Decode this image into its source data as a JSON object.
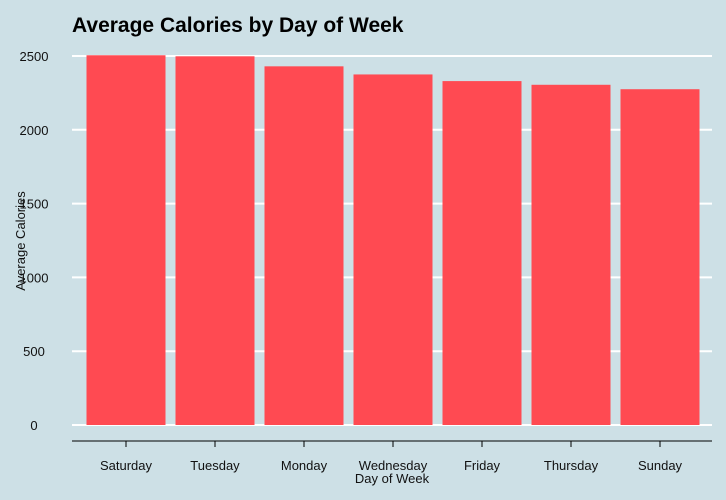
{
  "chart_data": {
    "type": "bar",
    "title": "Average Calories by Day of Week",
    "xlabel": "Day of Week",
    "ylabel": "Average Calories",
    "categories": [
      "Saturday",
      "Tuesday",
      "Monday",
      "Wednesday",
      "Friday",
      "Thursday",
      "Sunday"
    ],
    "values": [
      2505,
      2498,
      2430,
      2375,
      2330,
      2305,
      2275
    ],
    "ylim": [
      0,
      2500
    ],
    "yticks": [
      0,
      500,
      1000,
      1500,
      2000,
      2500
    ],
    "grid": true,
    "legend": "none",
    "colors": {
      "background": "#cde0e6",
      "bar": "#ff4a52",
      "grid": "#ffffff",
      "axis": "#000000"
    }
  }
}
